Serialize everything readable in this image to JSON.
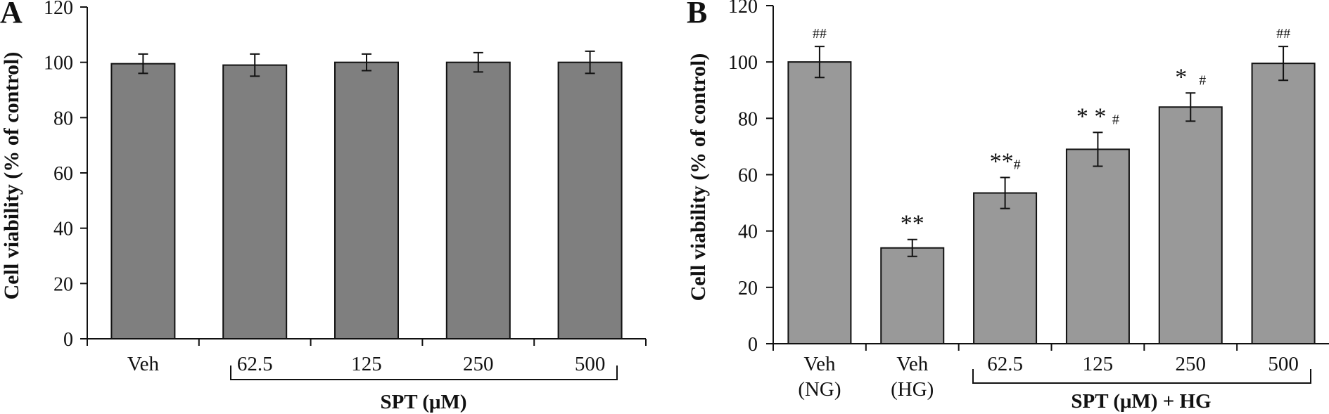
{
  "chart_data": [
    {
      "panel": "A",
      "type": "bar",
      "ylabel": "Cell viability (% of control)",
      "ylim": [
        0,
        120
      ],
      "yticks": [
        0,
        20,
        40,
        60,
        80,
        100,
        120
      ],
      "categories": [
        "Veh",
        "62.5",
        "125",
        "250",
        "500"
      ],
      "values": [
        99.5,
        99.0,
        100.0,
        100.0,
        100.0
      ],
      "errors": [
        3.5,
        4.0,
        3.0,
        3.5,
        4.0
      ],
      "bar_color": "#7f7f7f",
      "group_label": "SPT (μM)",
      "annotations": [
        "",
        "",
        "",
        "",
        ""
      ]
    },
    {
      "panel": "B",
      "type": "bar",
      "ylabel": "Cell viability (% of control)",
      "ylim": [
        0,
        120
      ],
      "yticks": [
        0,
        20,
        40,
        60,
        80,
        100,
        120
      ],
      "categories": [
        "Veh\n(NG)",
        "Veh\n(HG)",
        "62.5",
        "125",
        "250",
        "500"
      ],
      "values": [
        100.0,
        34.0,
        53.5,
        69.0,
        84.0,
        99.5
      ],
      "errors": [
        5.5,
        3.0,
        5.5,
        6.0,
        5.0,
        6.0
      ],
      "bar_color": "#999999",
      "group_label": "SPT (μM) + HG",
      "annotations": [
        "##",
        "**",
        "**#",
        "* * #",
        "*  #",
        "##"
      ]
    }
  ]
}
